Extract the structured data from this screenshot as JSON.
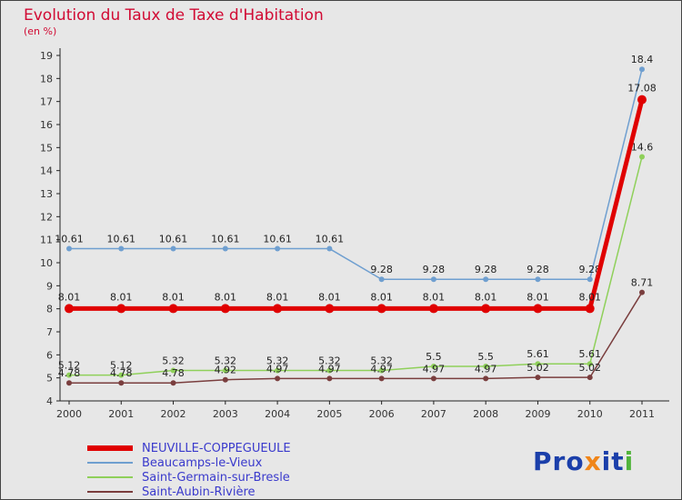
{
  "title": "Evolution du Taux de Taxe d'Habitation",
  "subtitle": "(en %)",
  "colors": {
    "background": "#e7e7e7",
    "title": "#d10a33",
    "axis": "#222222",
    "tick_text": "#333333",
    "point_label": "#222222",
    "legend_text": "#3a3acc",
    "border": "#444444"
  },
  "chart_data": {
    "type": "line",
    "x": [
      "2000",
      "2001",
      "2002",
      "2003",
      "2004",
      "2005",
      "2006",
      "2007",
      "2008",
      "2009",
      "2010",
      "2011"
    ],
    "ylim": [
      4,
      19
    ],
    "ytick_step": 1,
    "grid": false,
    "legend_position": "bottom-left",
    "series": [
      {
        "name": "NEUVILLE-COPPEGUEULE",
        "color": "#e00000",
        "line_width": 5,
        "marker_radius": 5,
        "values": [
          8.01,
          8.01,
          8.01,
          8.01,
          8.01,
          8.01,
          8.01,
          8.01,
          8.01,
          8.01,
          8.01,
          17.08
        ]
      },
      {
        "name": "Beaucamps-le-Vieux",
        "color": "#6f9fd0",
        "line_width": 1.5,
        "marker_radius": 3,
        "values": [
          10.61,
          10.61,
          10.61,
          10.61,
          10.61,
          10.61,
          9.28,
          9.28,
          9.28,
          9.28,
          9.28,
          18.4
        ]
      },
      {
        "name": "Saint-Germain-sur-Bresle",
        "color": "#8fd05a",
        "line_width": 1.5,
        "marker_radius": 3,
        "values": [
          5.12,
          5.12,
          5.32,
          5.32,
          5.32,
          5.32,
          5.32,
          5.5,
          5.5,
          5.61,
          5.61,
          14.6
        ]
      },
      {
        "name": "Saint-Aubin-Rivière",
        "color": "#7a3e3e",
        "line_width": 1.5,
        "marker_radius": 3,
        "values": [
          4.78,
          4.78,
          4.78,
          4.92,
          4.97,
          4.97,
          4.97,
          4.97,
          4.97,
          5.02,
          5.02,
          8.71
        ]
      }
    ]
  },
  "legend": {
    "items": [
      "NEUVILLE-COPPEGUEULE",
      "Beaucamps-le-Vieux",
      "Saint-Germain-sur-Bresle",
      "Saint-Aubin-Rivière"
    ]
  },
  "logo": {
    "text": "Proxiti",
    "letters": [
      {
        "ch": "P",
        "color": "#1b3faa"
      },
      {
        "ch": "r",
        "color": "#1b3faa"
      },
      {
        "ch": "o",
        "color": "#1b3faa"
      },
      {
        "ch": "x",
        "color": "#f08519"
      },
      {
        "ch": "i",
        "color": "#1b3faa"
      },
      {
        "ch": "t",
        "color": "#1b3faa"
      },
      {
        "ch": "i",
        "color": "#52b43c"
      }
    ]
  }
}
